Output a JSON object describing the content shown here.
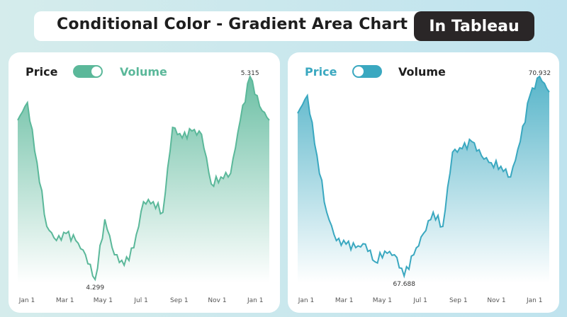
{
  "header": {
    "title": "Conditional Color - Gradient Area Chart",
    "badge": "In Tableau"
  },
  "colors": {
    "price": "#5bb89a",
    "volume": "#3aa8c0"
  },
  "chart_data": [
    {
      "type": "area",
      "toggle": {
        "left": "Price",
        "right": "Volume",
        "selected": "Price"
      },
      "x_ticks": [
        "Jan 1",
        "Mar 1",
        "May 1",
        "Jul 1",
        "Sep 1",
        "Nov 1",
        "Jan 1"
      ],
      "x": [
        "Dec 17",
        "Jan 1",
        "Jan 16",
        "Jan 31",
        "Feb 15",
        "Mar 2",
        "Mar 17",
        "Apr 1",
        "Apr 16",
        "May 1",
        "May 16",
        "May 31",
        "Jun 15",
        "Jun 30",
        "Jul 15",
        "Jul 30",
        "Aug 14",
        "Aug 29",
        "Sep 13",
        "Sep 28",
        "Oct 13",
        "Oct 28",
        "Nov 12",
        "Nov 27",
        "Dec 12",
        "Dec 27",
        "Jan 11"
      ],
      "values": [
        5.096,
        5.184,
        4.883,
        4.565,
        4.494,
        4.529,
        4.494,
        4.423,
        4.299,
        4.6,
        4.423,
        4.37,
        4.458,
        4.688,
        4.688,
        4.635,
        5.06,
        5.007,
        5.042,
        5.025,
        4.777,
        4.812,
        4.83,
        5.096,
        5.315,
        5.166,
        5.096
      ],
      "max_label": "5.315",
      "min_label": "4.299",
      "gradient": "color-by-value"
    },
    {
      "type": "area",
      "toggle": {
        "left": "Price",
        "right": "Volume",
        "selected": "Volume"
      },
      "x_ticks": [
        "Jan 1",
        "Mar 1",
        "May 1",
        "Jul 1",
        "Sep 1",
        "Nov 1",
        "Jan 1"
      ],
      "x": [
        "Dec 17",
        "Jan 1",
        "Jan 16",
        "Jan 31",
        "Feb 15",
        "Mar 2",
        "Mar 17",
        "Apr 1",
        "Apr 16",
        "May 1",
        "May 16",
        "May 31",
        "Jun 15",
        "Jun 30",
        "Jul 15",
        "Jul 30",
        "Aug 14",
        "Aug 29",
        "Sep 13",
        "Sep 28",
        "Oct 13",
        "Oct 28",
        "Nov 12",
        "Nov 27",
        "Dec 12",
        "Dec 27",
        "Jan 11"
      ],
      "values": [
        70.333,
        70.621,
        69.643,
        68.723,
        68.263,
        68.206,
        68.148,
        68.206,
        67.918,
        68.091,
        68.033,
        67.688,
        68.033,
        68.378,
        68.723,
        68.493,
        69.701,
        69.758,
        69.873,
        69.643,
        69.528,
        69.471,
        69.298,
        69.873,
        70.621,
        70.932,
        70.678
      ],
      "max_label": "70.932",
      "min_label": "67.688",
      "gradient": "color-by-value"
    }
  ]
}
